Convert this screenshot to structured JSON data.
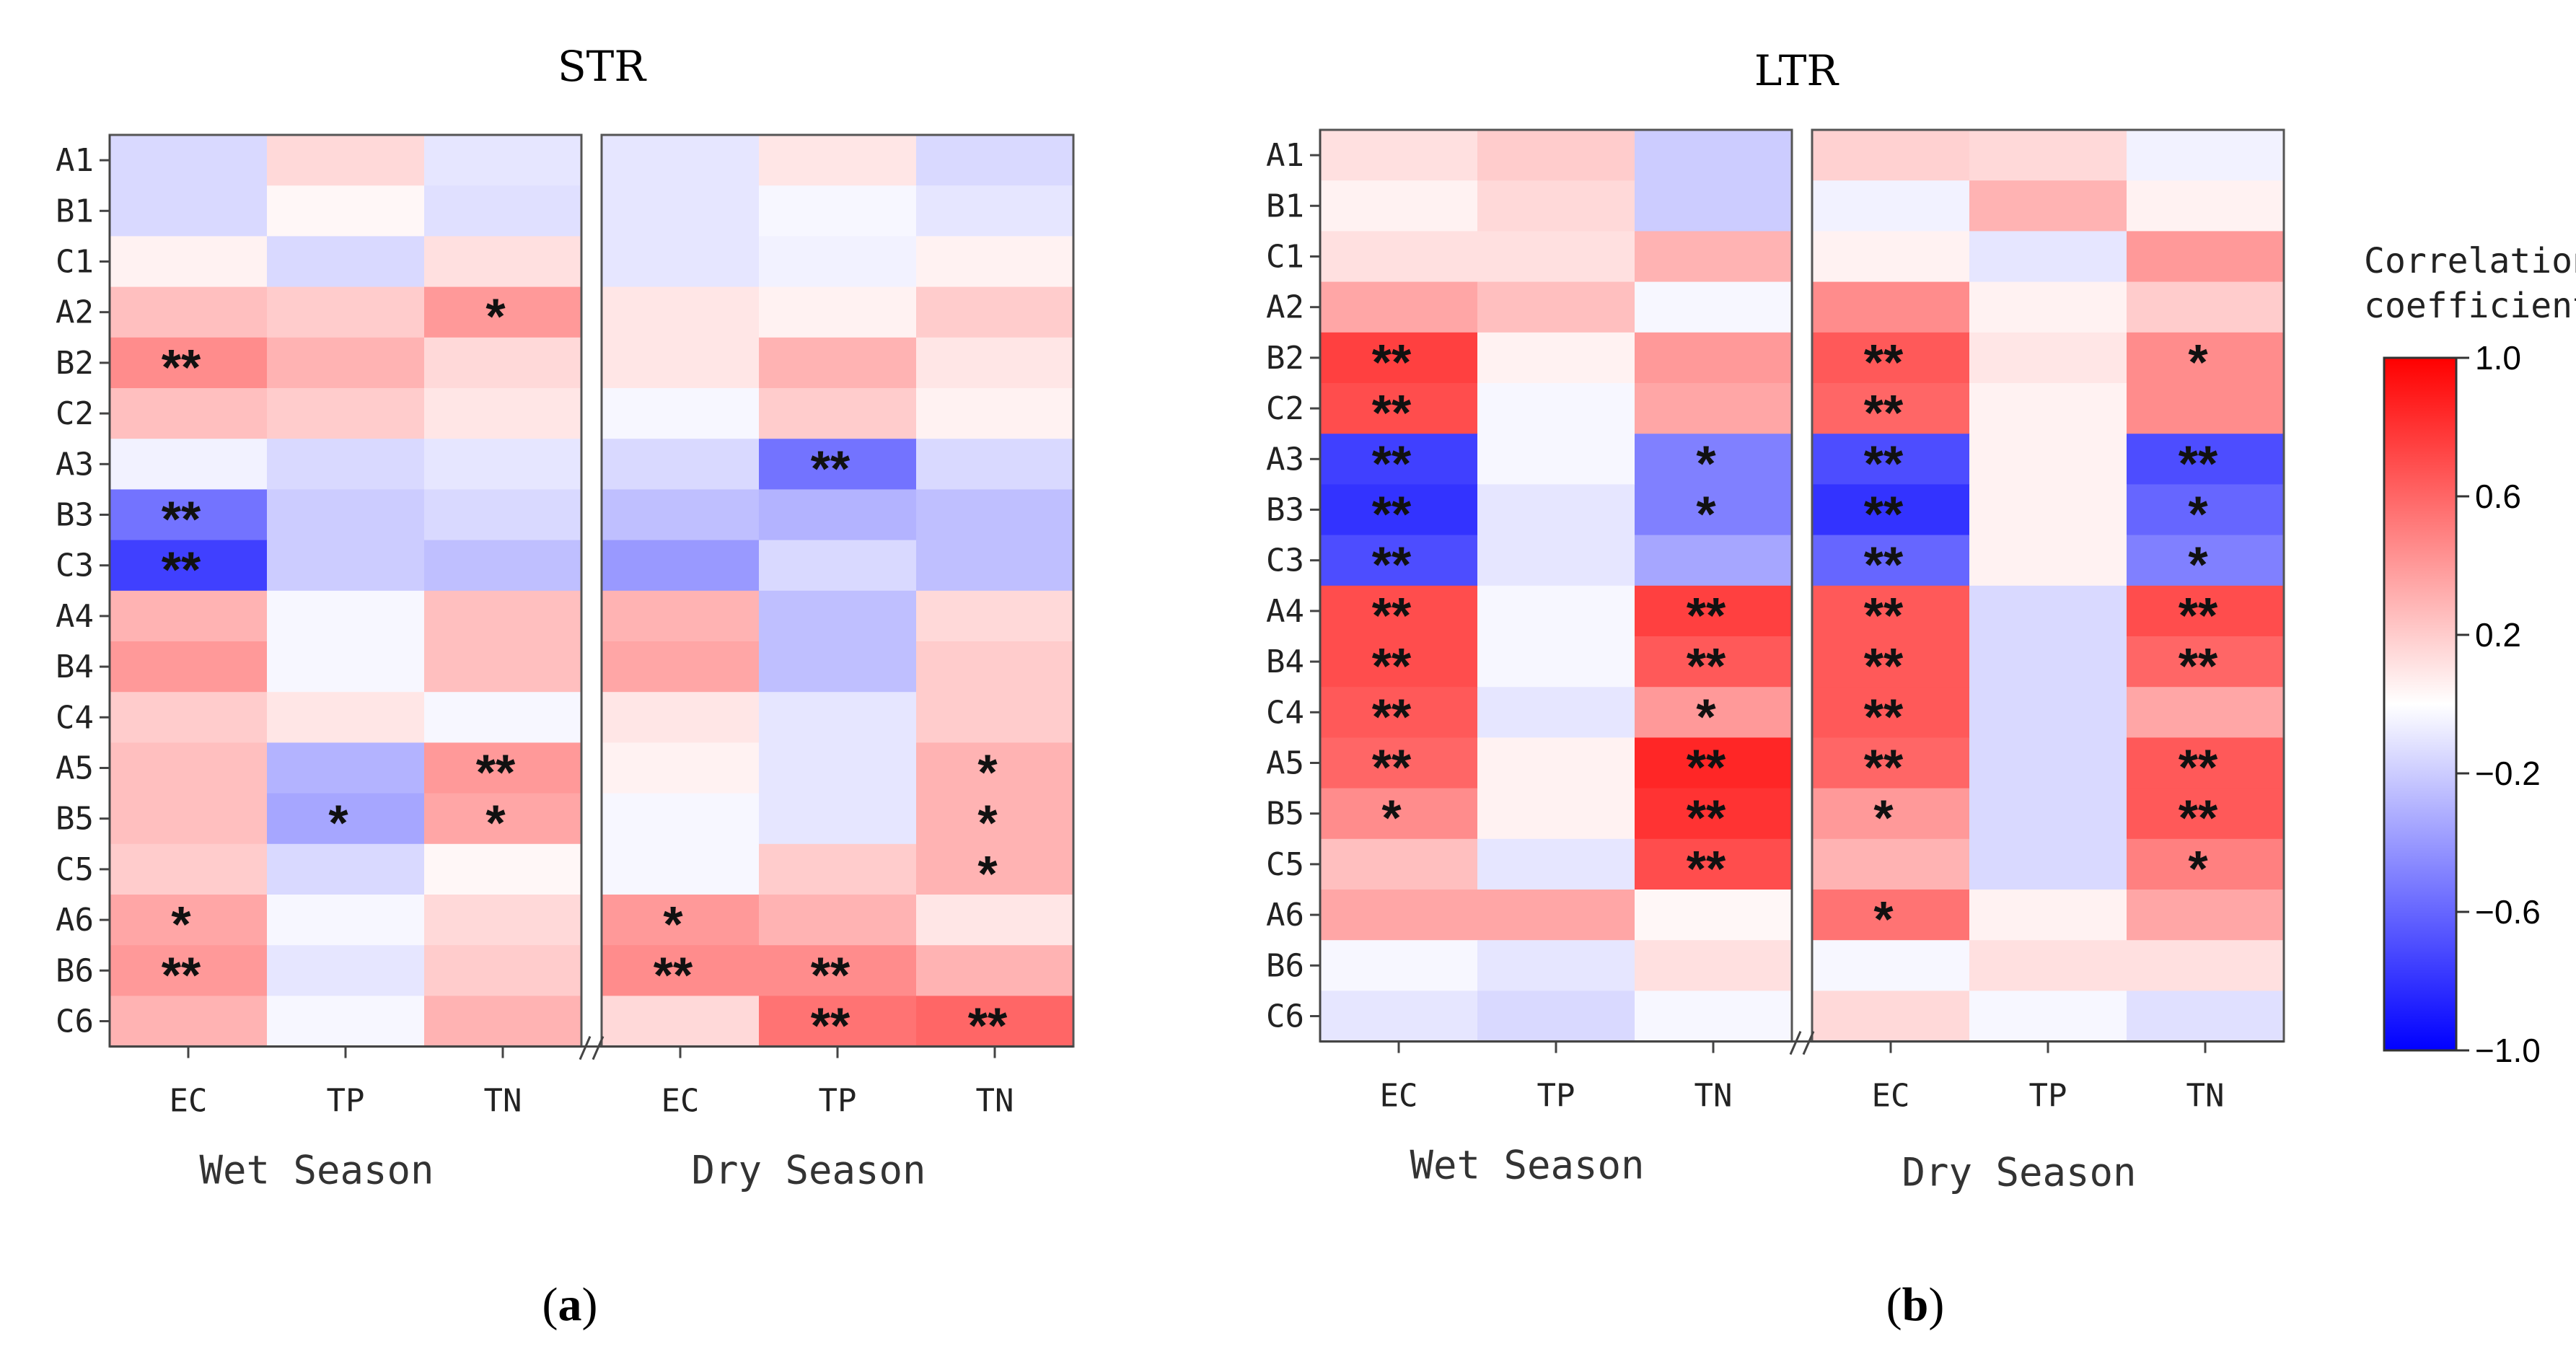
{
  "chart_data": [
    {
      "type": "heatmap",
      "title": "STR",
      "panel_label": "a",
      "rows": [
        "A1",
        "B1",
        "C1",
        "A2",
        "B2",
        "C2",
        "A3",
        "B3",
        "C3",
        "A4",
        "B4",
        "C4",
        "A5",
        "B5",
        "C5",
        "A6",
        "B6",
        "C6"
      ],
      "groups": [
        {
          "name": "Wet Season",
          "columns": [
            "EC",
            "TP",
            "TN"
          ]
        },
        {
          "name": "Dry Season",
          "columns": [
            "EC",
            "TP",
            "TN"
          ]
        }
      ],
      "values": [
        [
          -0.15,
          0.15,
          -0.1,
          -0.1,
          0.1,
          -0.15
        ],
        [
          -0.15,
          0.03,
          -0.12,
          -0.1,
          -0.03,
          -0.1
        ],
        [
          0.05,
          -0.15,
          0.12,
          -0.1,
          -0.05,
          0.05
        ],
        [
          0.25,
          0.2,
          0.4,
          0.1,
          0.05,
          0.2
        ],
        [
          0.45,
          0.3,
          0.15,
          0.1,
          0.3,
          0.1
        ],
        [
          0.25,
          0.2,
          0.1,
          -0.03,
          0.2,
          0.05
        ],
        [
          -0.05,
          -0.15,
          -0.1,
          -0.15,
          -0.55,
          -0.15
        ],
        [
          -0.55,
          -0.2,
          -0.15,
          -0.25,
          -0.3,
          -0.25
        ],
        [
          -0.75,
          -0.2,
          -0.25,
          -0.4,
          -0.15,
          -0.25
        ],
        [
          0.3,
          -0.03,
          0.25,
          0.3,
          -0.25,
          0.15
        ],
        [
          0.4,
          -0.03,
          0.25,
          0.35,
          -0.25,
          0.2
        ],
        [
          0.2,
          0.1,
          -0.03,
          0.1,
          -0.1,
          0.2
        ],
        [
          0.25,
          -0.3,
          0.4,
          0.05,
          -0.1,
          0.3
        ],
        [
          0.25,
          -0.35,
          0.35,
          -0.03,
          -0.1,
          0.3
        ],
        [
          0.2,
          -0.15,
          0.03,
          -0.03,
          0.2,
          0.3
        ],
        [
          0.35,
          -0.03,
          0.15,
          0.4,
          0.3,
          0.1
        ],
        [
          0.4,
          -0.1,
          0.2,
          0.45,
          0.45,
          0.3
        ],
        [
          0.3,
          -0.03,
          0.3,
          0.15,
          0.55,
          0.6
        ]
      ],
      "significance": [
        [
          "",
          "",
          "",
          "",
          "",
          ""
        ],
        [
          "",
          "",
          "",
          "",
          "",
          ""
        ],
        [
          "",
          "",
          "",
          "",
          "",
          ""
        ],
        [
          "",
          "",
          "*",
          "",
          "",
          ""
        ],
        [
          "**",
          "",
          "",
          "",
          "",
          ""
        ],
        [
          "",
          "",
          "",
          "",
          "",
          ""
        ],
        [
          "",
          "",
          "",
          "",
          "**",
          ""
        ],
        [
          "**",
          "",
          "",
          "",
          "",
          ""
        ],
        [
          "**",
          "",
          "",
          "",
          "",
          ""
        ],
        [
          "",
          "",
          "",
          "",
          "",
          ""
        ],
        [
          "",
          "",
          "",
          "",
          "",
          ""
        ],
        [
          "",
          "",
          "",
          "",
          "",
          ""
        ],
        [
          "",
          "",
          "**",
          "",
          "",
          "*"
        ],
        [
          "",
          "*",
          "*",
          "",
          "",
          "*"
        ],
        [
          "",
          "",
          "",
          "",
          "",
          "*"
        ],
        [
          "*",
          "",
          "",
          "*",
          "",
          ""
        ],
        [
          "**",
          "",
          "",
          "**",
          "**",
          ""
        ],
        [
          "",
          "",
          "",
          "",
          "**",
          "**"
        ]
      ]
    },
    {
      "type": "heatmap",
      "title": "LTR",
      "panel_label": "b",
      "rows": [
        "A1",
        "B1",
        "C1",
        "A2",
        "B2",
        "C2",
        "A3",
        "B3",
        "C3",
        "A4",
        "B4",
        "C4",
        "A5",
        "B5",
        "C5",
        "A6",
        "B6",
        "C6"
      ],
      "groups": [
        {
          "name": "Wet Season",
          "columns": [
            "EC",
            "TP",
            "TN"
          ]
        },
        {
          "name": "Dry Season",
          "columns": [
            "EC",
            "TP",
            "TN"
          ]
        }
      ],
      "values": [
        [
          0.12,
          0.2,
          -0.2,
          0.18,
          0.15,
          -0.05
        ],
        [
          0.05,
          0.15,
          -0.2,
          -0.05,
          0.3,
          0.05
        ],
        [
          0.12,
          0.12,
          0.3,
          0.05,
          -0.1,
          0.4
        ],
        [
          0.35,
          0.25,
          -0.03,
          0.45,
          0.05,
          0.2
        ],
        [
          0.75,
          0.05,
          0.4,
          0.65,
          0.1,
          0.45
        ],
        [
          0.7,
          -0.03,
          0.35,
          0.6,
          0.05,
          0.45
        ],
        [
          -0.75,
          -0.03,
          -0.5,
          -0.7,
          0.05,
          -0.7
        ],
        [
          -0.8,
          -0.1,
          -0.5,
          -0.8,
          0.05,
          -0.6
        ],
        [
          -0.7,
          -0.1,
          -0.35,
          -0.6,
          0.05,
          -0.5
        ],
        [
          0.7,
          -0.03,
          0.75,
          0.65,
          -0.15,
          0.7
        ],
        [
          0.7,
          -0.03,
          0.65,
          0.65,
          -0.15,
          0.6
        ],
        [
          0.65,
          -0.1,
          0.4,
          0.65,
          -0.15,
          0.35
        ],
        [
          0.6,
          0.05,
          0.85,
          0.6,
          -0.15,
          0.65
        ],
        [
          0.45,
          0.05,
          0.8,
          0.4,
          -0.15,
          0.65
        ],
        [
          0.25,
          -0.1,
          0.7,
          0.3,
          -0.15,
          0.5
        ],
        [
          0.35,
          0.35,
          0.03,
          0.55,
          0.05,
          0.35
        ],
        [
          -0.03,
          -0.1,
          0.12,
          -0.03,
          0.12,
          0.12
        ],
        [
          -0.1,
          -0.15,
          -0.03,
          0.15,
          -0.03,
          -0.12
        ]
      ],
      "significance": [
        [
          "",
          "",
          "",
          "",
          "",
          ""
        ],
        [
          "",
          "",
          "",
          "",
          "",
          ""
        ],
        [
          "",
          "",
          "",
          "",
          "",
          ""
        ],
        [
          "",
          "",
          "",
          "",
          "",
          ""
        ],
        [
          "**",
          "",
          "",
          "**",
          "",
          "*"
        ],
        [
          "**",
          "",
          "",
          "**",
          "",
          ""
        ],
        [
          "**",
          "",
          "*",
          "**",
          "",
          "**"
        ],
        [
          "**",
          "",
          "*",
          "**",
          "",
          "*"
        ],
        [
          "**",
          "",
          "",
          "**",
          "",
          "*"
        ],
        [
          "**",
          "",
          "**",
          "**",
          "",
          "**"
        ],
        [
          "**",
          "",
          "**",
          "**",
          "",
          "**"
        ],
        [
          "**",
          "",
          "*",
          "**",
          "",
          ""
        ],
        [
          "**",
          "",
          "**",
          "**",
          "",
          "**"
        ],
        [
          "*",
          "",
          "**",
          "*",
          "",
          "**"
        ],
        [
          "",
          "",
          "**",
          "",
          "",
          "*"
        ],
        [
          "",
          "",
          "",
          "*",
          "",
          ""
        ],
        [
          "",
          "",
          "",
          "",
          "",
          ""
        ],
        [
          "",
          "",
          "",
          "",
          "",
          ""
        ]
      ]
    }
  ],
  "colorbar": {
    "title_lines": [
      "Correlation",
      "coefficient"
    ],
    "ticks": [
      "1.0",
      "0.6",
      "0.2",
      "−0.2",
      "−0.6",
      "−1.0"
    ],
    "tick_values": [
      1.0,
      0.6,
      0.2,
      -0.2,
      -0.6,
      -1.0
    ],
    "range": [
      -1.0,
      1.0
    ],
    "colors": {
      "negative": "#0000ff",
      "neutral": "#ffffff",
      "positive": "#ff0000"
    }
  }
}
